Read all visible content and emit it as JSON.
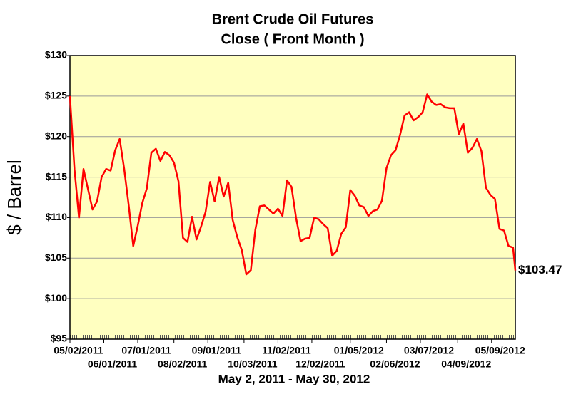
{
  "chart_data": {
    "type": "line",
    "title": "Brent Crude Oil Futures",
    "subtitle": "Close ( Front Month )",
    "y_label": "$ / Barrel",
    "x_label": "May 2, 2011 - May 30, 2012",
    "color": "#ff0000",
    "grid": true,
    "x": [
      "2011-05-02",
      "2011-05-06",
      "2011-05-10",
      "2011-05-14",
      "2011-05-18",
      "2011-05-22",
      "2011-05-26",
      "2011-05-30",
      "2011-06-03",
      "2011-06-07",
      "2011-06-11",
      "2011-06-15",
      "2011-06-19",
      "2011-06-23",
      "2011-06-27",
      "2011-07-01",
      "2011-07-05",
      "2011-07-09",
      "2011-07-13",
      "2011-07-17",
      "2011-07-21",
      "2011-07-25",
      "2011-07-29",
      "2011-08-02",
      "2011-08-06",
      "2011-08-10",
      "2011-08-14",
      "2011-08-18",
      "2011-08-22",
      "2011-08-26",
      "2011-08-30",
      "2011-09-03",
      "2011-09-07",
      "2011-09-11",
      "2011-09-15",
      "2011-09-19",
      "2011-09-23",
      "2011-09-27",
      "2011-10-01",
      "2011-10-05",
      "2011-10-09",
      "2011-10-13",
      "2011-10-17",
      "2011-10-21",
      "2011-10-25",
      "2011-10-29",
      "2011-11-02",
      "2011-11-06",
      "2011-11-10",
      "2011-11-14",
      "2011-11-18",
      "2011-11-22",
      "2011-11-26",
      "2011-11-30",
      "2011-12-04",
      "2011-12-08",
      "2011-12-12",
      "2011-12-16",
      "2011-12-20",
      "2011-12-24",
      "2011-12-28",
      "2012-01-01",
      "2012-01-05",
      "2012-01-09",
      "2012-01-13",
      "2012-01-17",
      "2012-01-21",
      "2012-01-25",
      "2012-01-29",
      "2012-02-02",
      "2012-02-06",
      "2012-02-10",
      "2012-02-14",
      "2012-02-18",
      "2012-02-22",
      "2012-02-26",
      "2012-03-01",
      "2012-03-05",
      "2012-03-09",
      "2012-03-13",
      "2012-03-17",
      "2012-03-21",
      "2012-03-25",
      "2012-03-29",
      "2012-04-02",
      "2012-04-06",
      "2012-04-10",
      "2012-04-14",
      "2012-04-18",
      "2012-04-22",
      "2012-04-26",
      "2012-04-30",
      "2012-05-04",
      "2012-05-08",
      "2012-05-12",
      "2012-05-16",
      "2012-05-20",
      "2012-05-24",
      "2012-05-28",
      "2012-05-30"
    ],
    "values": [
      125,
      116,
      110,
      116,
      113.5,
      111,
      112,
      115,
      116,
      115.8,
      118.3,
      119.7,
      116,
      111.5,
      106.5,
      109,
      111.8,
      113.6,
      118,
      118.5,
      117,
      118.1,
      117.7,
      116.8,
      114.5,
      107.5,
      107,
      110.1,
      107.3,
      108.9,
      110.7,
      114.4,
      112,
      115,
      112.6,
      114.3,
      109.7,
      107.6,
      106,
      103,
      103.5,
      108.5,
      111.4,
      111.5,
      111,
      110.5,
      111.1,
      110.2,
      114.6,
      113.8,
      110,
      107.1,
      107.4,
      107.5,
      110,
      109.8,
      109.2,
      108.7,
      105.3,
      105.9,
      108,
      108.8,
      113.4,
      112.7,
      111.5,
      111.3,
      110.2,
      110.8,
      111,
      112.1,
      116.1,
      117.7,
      118.3,
      120.2,
      122.6,
      123,
      122,
      122.4,
      123,
      125.2,
      124.3,
      123.9,
      124,
      123.6,
      123.5,
      123.5,
      120.3,
      121.6,
      118,
      118.6,
      119.7,
      118.2,
      113.7,
      112.8,
      112.3,
      108.6,
      108.4,
      106.5,
      106.3,
      103.47
    ],
    "value_labels": [
      null,
      null,
      null,
      null,
      null,
      null,
      null,
      null,
      null,
      null,
      null,
      null,
      null,
      null,
      null,
      null,
      null,
      null,
      null,
      null,
      null,
      null,
      null,
      null,
      null,
      null,
      null,
      null,
      null,
      null,
      null,
      null,
      null,
      null,
      null,
      null,
      null,
      null,
      null,
      null,
      null,
      null,
      null,
      null,
      null,
      null,
      null,
      null,
      null,
      null,
      null,
      null,
      null,
      null,
      null,
      null,
      null,
      null,
      null,
      null,
      null,
      null,
      null,
      null,
      null,
      null,
      null,
      null,
      null,
      null,
      null,
      null,
      null,
      null,
      null,
      null,
      null,
      null,
      null,
      null,
      null,
      null,
      null,
      null,
      null,
      null,
      null,
      null,
      null,
      null,
      null,
      null,
      null,
      null,
      null,
      null,
      null,
      null,
      null,
      "$103.47"
    ],
    "xlim": [
      "2011-05-02",
      "2012-05-30"
    ],
    "xticks": [
      {
        "value": "2011-05-02",
        "label": "05/02/2011"
      },
      {
        "value": "2011-06-01",
        "label": "06/01/2011"
      },
      {
        "value": "2011-07-01",
        "label": "07/01/2011"
      },
      {
        "value": "2011-08-02",
        "label": "08/02/2011"
      },
      {
        "value": "2011-09-01",
        "label": "09/01/2011"
      },
      {
        "value": "2011-10-03",
        "label": "10/03/2011"
      },
      {
        "value": "2011-11-02",
        "label": "11/02/2011"
      },
      {
        "value": "2011-12-02",
        "label": "12/02/2011"
      },
      {
        "value": "2012-01-05",
        "label": "01/05/2012"
      },
      {
        "value": "2012-02-06",
        "label": "02/06/2012"
      },
      {
        "value": "2012-03-07",
        "label": "03/07/2012"
      },
      {
        "value": "2012-04-09",
        "label": "04/09/2012"
      },
      {
        "value": "2012-05-09",
        "label": "05/09/2012"
      }
    ],
    "ylim": [
      95,
      130
    ],
    "yticks": [
      {
        "value": 95,
        "label": "$95"
      },
      {
        "value": 100,
        "label": "$100"
      },
      {
        "value": 105,
        "label": "$105"
      },
      {
        "value": 110,
        "label": "$110"
      },
      {
        "value": 115,
        "label": "$115"
      },
      {
        "value": 120,
        "label": "$120"
      },
      {
        "value": 125,
        "label": "$125"
      },
      {
        "value": 130,
        "label": "$130"
      }
    ]
  }
}
